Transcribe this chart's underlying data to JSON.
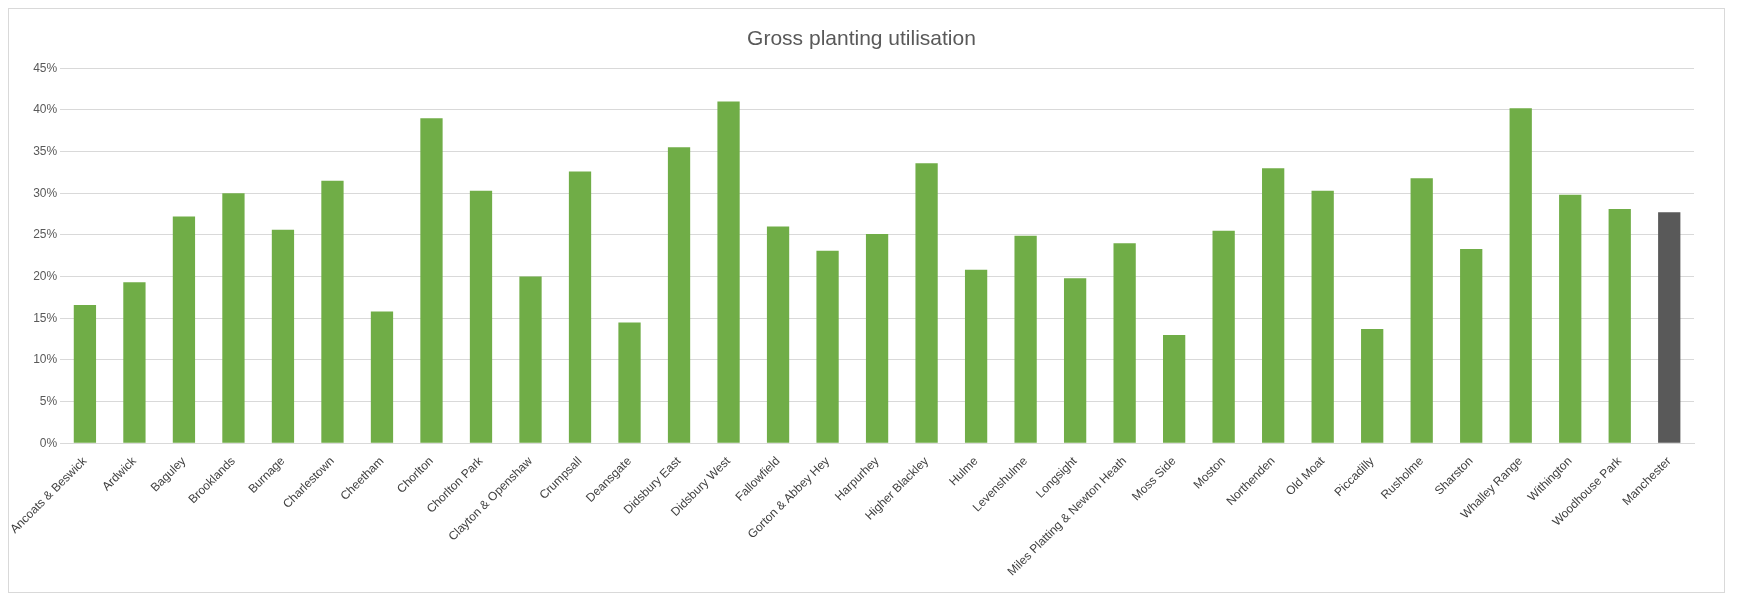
{
  "chart_data": {
    "type": "bar",
    "title": "Gross planting utilisation",
    "categories": [
      "Ancoats & Beswick",
      "Ardwick",
      "Baguley",
      "Brooklands",
      "Burnage",
      "Charlestown",
      "Cheetham",
      "Chorlton",
      "Chorlton Park",
      "Clayton & Openshaw",
      "Crumpsall",
      "Deansgate",
      "Didsbury East",
      "Didsbury West",
      "Fallowfield",
      "Gorton & Abbey Hey",
      "Harpurhey",
      "Higher Blackley",
      "Hulme",
      "Levenshulme",
      "Longsight",
      "Miles Platting & Newton Heath",
      "Moss Side",
      "Moston",
      "Northenden",
      "Old Moat",
      "Piccadilly",
      "Rusholme",
      "Sharston",
      "Whalley Range",
      "Withington",
      "Woodhouse Park",
      "Manchester"
    ],
    "values": [
      16.6,
      19.3,
      27.2,
      30,
      25.6,
      31.5,
      15.8,
      39,
      30.3,
      20,
      32.6,
      14.5,
      35.5,
      41,
      26,
      23.1,
      25.1,
      33.6,
      20.8,
      24.9,
      19.8,
      24,
      13,
      25.5,
      33,
      30.3,
      13.7,
      31.8,
      23.3,
      40.2,
      29.8,
      28.1,
      27.7
    ],
    "colors": [
      "#70ad47",
      "#70ad47",
      "#70ad47",
      "#70ad47",
      "#70ad47",
      "#70ad47",
      "#70ad47",
      "#70ad47",
      "#70ad47",
      "#70ad47",
      "#70ad47",
      "#70ad47",
      "#70ad47",
      "#70ad47",
      "#70ad47",
      "#70ad47",
      "#70ad47",
      "#70ad47",
      "#70ad47",
      "#70ad47",
      "#70ad47",
      "#70ad47",
      "#70ad47",
      "#70ad47",
      "#70ad47",
      "#70ad47",
      "#70ad47",
      "#70ad47",
      "#70ad47",
      "#70ad47",
      "#70ad47",
      "#70ad47",
      "#595959"
    ],
    "ylim": [
      0,
      45
    ],
    "yticks": [
      {
        "value": 0,
        "label": "0%"
      },
      {
        "value": 5,
        "label": "5%"
      },
      {
        "value": 10,
        "label": "10%"
      },
      {
        "value": 15,
        "label": "15%"
      },
      {
        "value": 20,
        "label": "20%"
      },
      {
        "value": 25,
        "label": "25%"
      },
      {
        "value": 30,
        "label": "30%"
      },
      {
        "value": 35,
        "label": "35%"
      },
      {
        "value": 40,
        "label": "40%"
      },
      {
        "value": 45,
        "label": "45%"
      }
    ],
    "grid": "y",
    "legend": false
  }
}
